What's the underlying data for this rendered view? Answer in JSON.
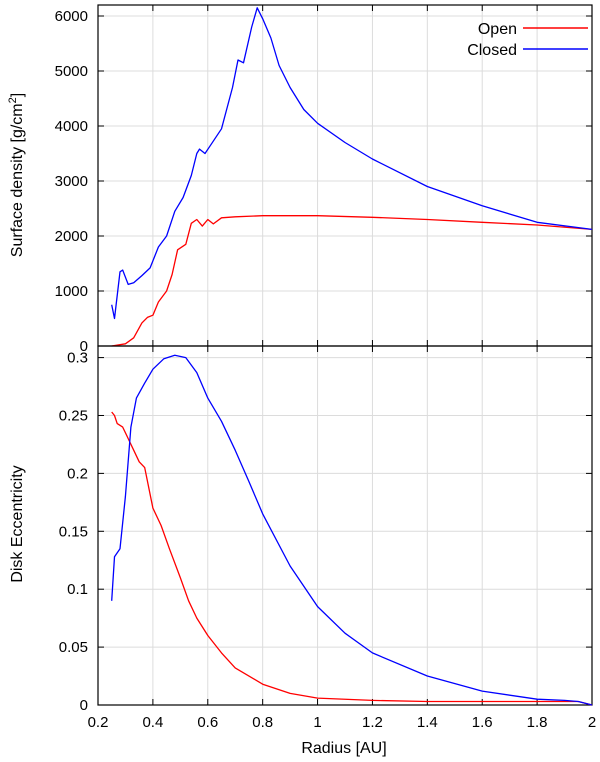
{
  "colors": {
    "open": "#ff0000",
    "closed": "#0000ff",
    "grid": "#dcdcdc"
  },
  "chart_data": [
    {
      "type": "line",
      "xlabel": "",
      "ylabel": "Surface density [g/cm",
      "ylabel_sup": "2",
      "ylabel_tail": "]",
      "xlim": [
        0.2,
        2.0
      ],
      "ylim": [
        0,
        6200
      ],
      "yticks": [
        0,
        1000,
        2000,
        3000,
        4000,
        5000,
        6000
      ],
      "xticks": [
        0.2,
        0.4,
        0.6,
        0.8,
        1.0,
        1.2,
        1.4,
        1.6,
        1.8,
        2.0
      ],
      "grid": true,
      "legend_position": "top-right",
      "series": [
        {
          "name": "Open",
          "color": "#ff0000",
          "points": [
            [
              0.25,
              0
            ],
            [
              0.3,
              40
            ],
            [
              0.33,
              150
            ],
            [
              0.36,
              420
            ],
            [
              0.38,
              520
            ],
            [
              0.4,
              560
            ],
            [
              0.42,
              800
            ],
            [
              0.45,
              1000
            ],
            [
              0.47,
              1300
            ],
            [
              0.49,
              1750
            ],
            [
              0.52,
              1850
            ],
            [
              0.54,
              2230
            ],
            [
              0.56,
              2300
            ],
            [
              0.58,
              2180
            ],
            [
              0.6,
              2300
            ],
            [
              0.62,
              2220
            ],
            [
              0.65,
              2330
            ],
            [
              0.7,
              2350
            ],
            [
              0.8,
              2370
            ],
            [
              1.0,
              2370
            ],
            [
              1.2,
              2340
            ],
            [
              1.4,
              2300
            ],
            [
              1.6,
              2250
            ],
            [
              1.8,
              2200
            ],
            [
              2.0,
              2120
            ]
          ]
        },
        {
          "name": "Closed",
          "color": "#0000ff",
          "points": [
            [
              0.25,
              750
            ],
            [
              0.26,
              500
            ],
            [
              0.28,
              1350
            ],
            [
              0.29,
              1380
            ],
            [
              0.31,
              1120
            ],
            [
              0.33,
              1150
            ],
            [
              0.36,
              1280
            ],
            [
              0.39,
              1420
            ],
            [
              0.42,
              1800
            ],
            [
              0.45,
              2000
            ],
            [
              0.48,
              2450
            ],
            [
              0.51,
              2700
            ],
            [
              0.54,
              3100
            ],
            [
              0.56,
              3500
            ],
            [
              0.57,
              3580
            ],
            [
              0.59,
              3500
            ],
            [
              0.61,
              3650
            ],
            [
              0.65,
              3950
            ],
            [
              0.69,
              4700
            ],
            [
              0.71,
              5200
            ],
            [
              0.73,
              5150
            ],
            [
              0.76,
              5800
            ],
            [
              0.78,
              6150
            ],
            [
              0.8,
              5950
            ],
            [
              0.83,
              5600
            ],
            [
              0.86,
              5100
            ],
            [
              0.9,
              4700
            ],
            [
              0.95,
              4300
            ],
            [
              1.0,
              4050
            ],
            [
              1.1,
              3700
            ],
            [
              1.2,
              3400
            ],
            [
              1.4,
              2900
            ],
            [
              1.6,
              2550
            ],
            [
              1.8,
              2250
            ],
            [
              2.0,
              2120
            ]
          ]
        }
      ]
    },
    {
      "type": "line",
      "xlabel": "Radius [AU]",
      "ylabel": "Disk Eccentricity",
      "xlim": [
        0.2,
        2.0
      ],
      "ylim": [
        0,
        0.31
      ],
      "yticks": [
        0,
        0.05,
        0.1,
        0.15,
        0.2,
        0.25,
        0.3
      ],
      "xticks": [
        0.2,
        0.4,
        0.6,
        0.8,
        1.0,
        1.2,
        1.4,
        1.6,
        1.8,
        2.0
      ],
      "xticklabels": [
        "0.2",
        "0.4",
        "0.6",
        "0.8",
        "1",
        "1.2",
        "1.4",
        "1.6",
        "1.8",
        "2"
      ],
      "ytickslabels": [
        "0",
        "0.05",
        "0.1",
        "0.15",
        "0.2",
        "0.25",
        "0.3"
      ],
      "grid": true,
      "series": [
        {
          "name": "Open",
          "color": "#ff0000",
          "points": [
            [
              0.25,
              0.253
            ],
            [
              0.26,
              0.25
            ],
            [
              0.27,
              0.243
            ],
            [
              0.29,
              0.24
            ],
            [
              0.31,
              0.23
            ],
            [
              0.33,
              0.22
            ],
            [
              0.35,
              0.21
            ],
            [
              0.37,
              0.205
            ],
            [
              0.4,
              0.17
            ],
            [
              0.43,
              0.155
            ],
            [
              0.46,
              0.135
            ],
            [
              0.5,
              0.11
            ],
            [
              0.53,
              0.09
            ],
            [
              0.56,
              0.075
            ],
            [
              0.6,
              0.06
            ],
            [
              0.65,
              0.045
            ],
            [
              0.7,
              0.032
            ],
            [
              0.8,
              0.018
            ],
            [
              0.9,
              0.01
            ],
            [
              1.0,
              0.006
            ],
            [
              1.2,
              0.004
            ],
            [
              1.4,
              0.003
            ],
            [
              1.6,
              0.003
            ],
            [
              1.8,
              0.003
            ],
            [
              1.95,
              0.003
            ],
            [
              2.0,
              0.0
            ]
          ]
        },
        {
          "name": "Closed",
          "color": "#0000ff",
          "points": [
            [
              0.25,
              0.09
            ],
            [
              0.26,
              0.128
            ],
            [
              0.28,
              0.135
            ],
            [
              0.3,
              0.18
            ],
            [
              0.32,
              0.24
            ],
            [
              0.34,
              0.265
            ],
            [
              0.37,
              0.278
            ],
            [
              0.4,
              0.29
            ],
            [
              0.44,
              0.299
            ],
            [
              0.48,
              0.302
            ],
            [
              0.52,
              0.3
            ],
            [
              0.56,
              0.287
            ],
            [
              0.6,
              0.265
            ],
            [
              0.65,
              0.245
            ],
            [
              0.7,
              0.22
            ],
            [
              0.75,
              0.193
            ],
            [
              0.8,
              0.165
            ],
            [
              0.9,
              0.12
            ],
            [
              1.0,
              0.085
            ],
            [
              1.1,
              0.062
            ],
            [
              1.2,
              0.045
            ],
            [
              1.4,
              0.025
            ],
            [
              1.6,
              0.012
            ],
            [
              1.8,
              0.005
            ],
            [
              1.9,
              0.004
            ],
            [
              1.95,
              0.003
            ],
            [
              2.0,
              0.0
            ]
          ]
        }
      ]
    }
  ],
  "legend": [
    {
      "label": "Open",
      "color": "#ff0000"
    },
    {
      "label": "Closed",
      "color": "#0000ff"
    }
  ]
}
